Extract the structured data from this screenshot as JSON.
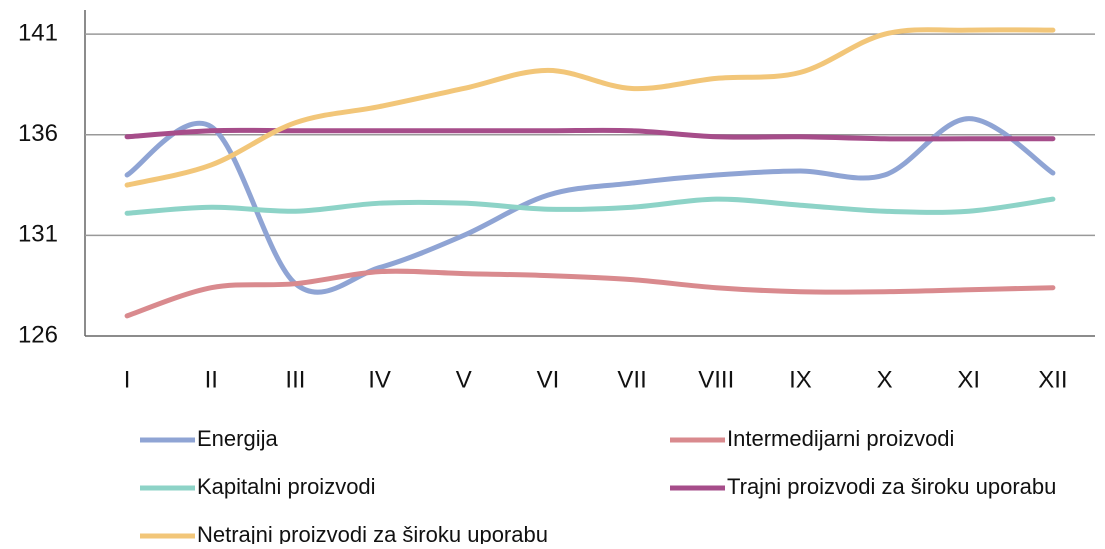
{
  "chart_data": {
    "type": "line",
    "categories": [
      "I",
      "II",
      "III",
      "IV",
      "V",
      "VI",
      "VII",
      "VIII",
      "IX",
      "X",
      "XI",
      "XII"
    ],
    "series": [
      {
        "name": "Energija",
        "color": "#8fa4d4",
        "values": [
          134.0,
          136.4,
          128.6,
          129.4,
          131.0,
          133.0,
          133.6,
          134.0,
          134.2,
          134.0,
          136.8,
          134.1
        ]
      },
      {
        "name": "Intermedijarni proizvodi",
        "color": "#d98a8e",
        "values": [
          127.0,
          128.4,
          128.6,
          129.2,
          129.1,
          129.0,
          128.8,
          128.4,
          128.2,
          128.2,
          128.3,
          128.4
        ]
      },
      {
        "name": "Kapitalni proizvodi",
        "color": "#8dd3c7",
        "values": [
          132.1,
          132.4,
          132.2,
          132.6,
          132.6,
          132.3,
          132.4,
          132.8,
          132.5,
          132.2,
          132.2,
          132.8
        ]
      },
      {
        "name": "Trajni proizvodi za široku uporabu",
        "color": "#a64d8a",
        "values": [
          135.9,
          136.2,
          136.2,
          136.2,
          136.2,
          136.2,
          136.2,
          135.9,
          135.9,
          135.8,
          135.8,
          135.8
        ]
      },
      {
        "name": "Netrajni proizvodi za široku uporabu",
        "color": "#f2c679",
        "values": [
          133.5,
          134.5,
          136.6,
          137.4,
          138.3,
          139.2,
          138.3,
          138.8,
          139.1,
          141.0,
          141.2,
          141.2
        ]
      }
    ],
    "ylim": [
      126,
      142.2
    ],
    "yticks": [
      126,
      131,
      136,
      141
    ],
    "grid": true,
    "legend": "bottom"
  }
}
